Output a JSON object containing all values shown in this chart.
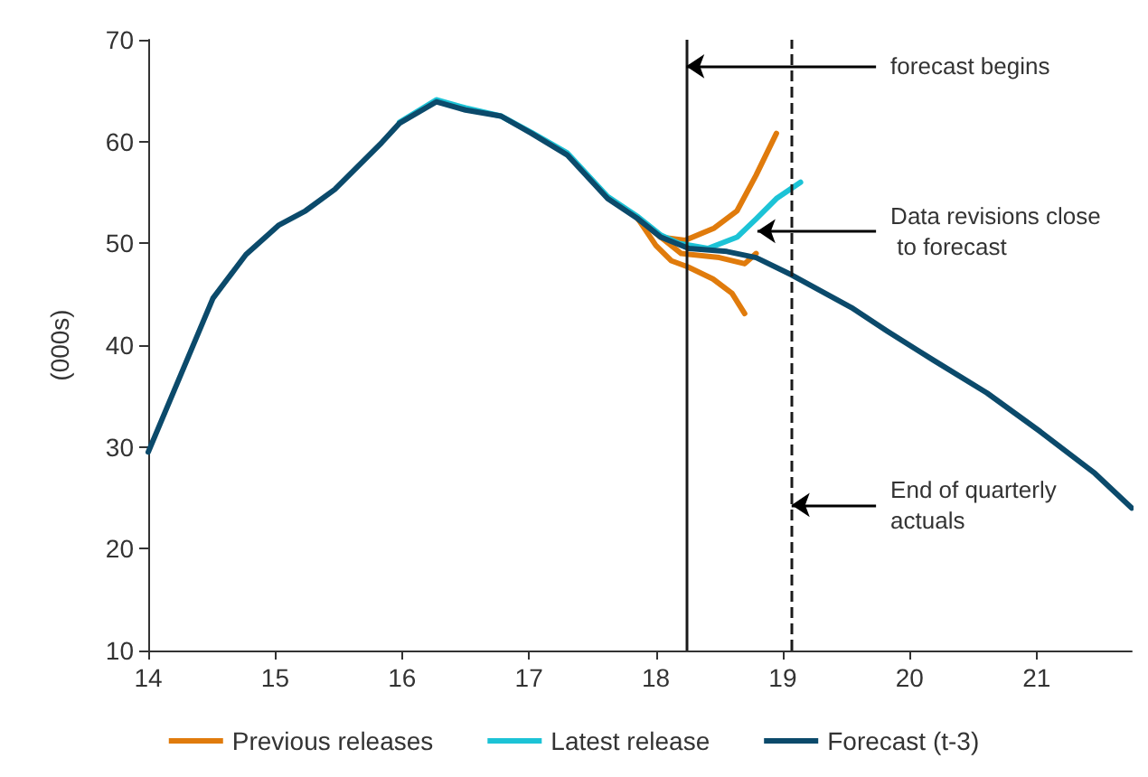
{
  "chart_data": {
    "type": "line",
    "ylabel": "(000s)",
    "xlim": [
      14,
      21.75
    ],
    "xticks": [
      14,
      15,
      16,
      17,
      18,
      19,
      20,
      21
    ],
    "ylim": [
      10,
      70
    ],
    "yticks": [
      10,
      20,
      30,
      40,
      50,
      60,
      70
    ],
    "grid": false,
    "legend": "bottom",
    "marker": "none",
    "line_style": "solid",
    "series": [
      {
        "name": "Previous releases",
        "color": "#e07b0c",
        "x": [
          17.86,
          18.04,
          18.23,
          18.46,
          18.64,
          18.79,
          18.95
        ],
        "values": [
          52.4,
          50.6,
          50.3,
          51.5,
          53.2,
          56.7,
          60.8
        ]
      },
      {
        "color": "#e07b0c",
        "x": [
          17.86,
          18.0,
          18.12,
          18.25,
          18.45,
          18.6,
          18.7
        ],
        "values": [
          52.4,
          49.8,
          48.3,
          47.7,
          46.5,
          45.1,
          43.1
        ]
      },
      {
        "color": "#e07b0c",
        "x": [
          17.86,
          18.0,
          18.2,
          18.5,
          18.7,
          18.79
        ],
        "values": [
          52.4,
          51.0,
          49.0,
          48.6,
          48.0,
          49.0
        ]
      },
      {
        "name": "Latest release",
        "color": "#1cc3d6",
        "x": [
          15.98,
          16.27,
          16.5,
          16.78,
          17.02,
          17.3,
          17.62,
          17.86,
          18.04,
          18.18,
          18.41,
          18.64,
          18.79,
          18.95,
          19.14
        ],
        "values": [
          61.9,
          64.1,
          63.3,
          62.5,
          60.9,
          58.9,
          54.6,
          52.6,
          50.8,
          50.0,
          49.5,
          50.6,
          52.4,
          54.4,
          56.0
        ]
      },
      {
        "name": "Forecast (t-3)",
        "color": "#0b4a6b",
        "x": [
          14,
          14.51,
          14.77,
          15.03,
          15.24,
          15.47,
          15.84,
          15.98,
          16.27,
          16.5,
          16.78,
          17.02,
          17.3,
          17.62,
          17.86,
          18.04,
          18.26,
          18.56,
          18.79,
          19.07,
          19.54,
          19.82,
          20.19,
          20.61,
          21.03,
          21.46,
          21.75
        ],
        "values": [
          29.5,
          44.6,
          48.9,
          51.8,
          53.2,
          55.3,
          59.9,
          61.8,
          63.9,
          63.1,
          62.5,
          60.8,
          58.7,
          54.4,
          52.4,
          50.6,
          49.5,
          49.2,
          48.6,
          46.9,
          43.7,
          41.4,
          38.5,
          35.3,
          31.5,
          27.4,
          24.0
        ]
      }
    ],
    "ref_lines": [
      {
        "axis": "x",
        "value": 18.24,
        "line_style": "solid",
        "color": "#1a1a1a"
      },
      {
        "axis": "x",
        "value": 19.07,
        "line_style": "dashed",
        "color": "#1a1a1a"
      }
    ],
    "annotations": [
      {
        "text": "forecast begins",
        "x": 18.24,
        "y": 67.4
      },
      {
        "text": "Data revisions close to forecast",
        "x": 18.8,
        "y": 51.2
      },
      {
        "text": "End of quarterly actuals",
        "x": 19.07,
        "y": 24.3
      }
    ]
  }
}
